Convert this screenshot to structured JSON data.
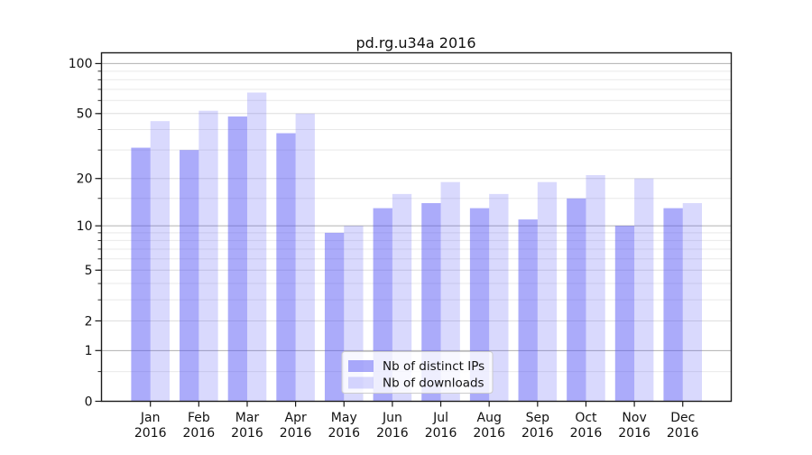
{
  "chart_data": {
    "type": "bar",
    "title": "pd.rg.u34a 2016",
    "categories": [
      "Jan",
      "Feb",
      "Mar",
      "Apr",
      "May",
      "Jun",
      "Jul",
      "Aug",
      "Sep",
      "Oct",
      "Nov",
      "Dec"
    ],
    "x_label_line2": "2016",
    "series": [
      {
        "name": "Nb of distinct IPs",
        "color": "rgba(80,80,245,0.48)",
        "values": [
          31,
          30,
          48,
          38,
          9,
          13,
          14,
          13,
          11,
          15,
          10,
          13
        ]
      },
      {
        "name": "Nb of downloads",
        "color": "rgba(80,80,245,0.22)",
        "values": [
          45,
          52,
          67,
          50,
          10,
          16,
          19,
          16,
          19,
          21,
          20,
          14
        ]
      }
    ],
    "y_axis": {
      "scale": "log10(1+v)",
      "tick_labels": [
        "0",
        "1",
        "2",
        "5",
        "10",
        "20",
        "50",
        "100"
      ],
      "major_ticks": [
        0,
        1,
        2,
        5,
        10,
        20,
        50,
        100
      ],
      "decade_gridlines": [
        1,
        10,
        100
      ],
      "mid_gridlines": [
        2,
        5,
        20,
        50
      ],
      "minor_gridlines": [
        0.5,
        3,
        4,
        6,
        7,
        8,
        9,
        15,
        30,
        40,
        60,
        70,
        80,
        90
      ],
      "ylim": [
        0,
        116
      ]
    },
    "legend": {
      "position": "lower-center",
      "entries": [
        "Nb of distinct IPs",
        "Nb of downloads"
      ]
    },
    "grid": true,
    "colors": {
      "grid_decade": "#b0b0b0",
      "grid_mid": "#dedede",
      "grid_minor": "#e9e9e9",
      "spine": "#1a1a1a",
      "tick": "#1a1a1a",
      "text": "#111111",
      "legend_bg": "rgba(255,255,255,0.8)",
      "legend_border": "#cccccc"
    }
  }
}
